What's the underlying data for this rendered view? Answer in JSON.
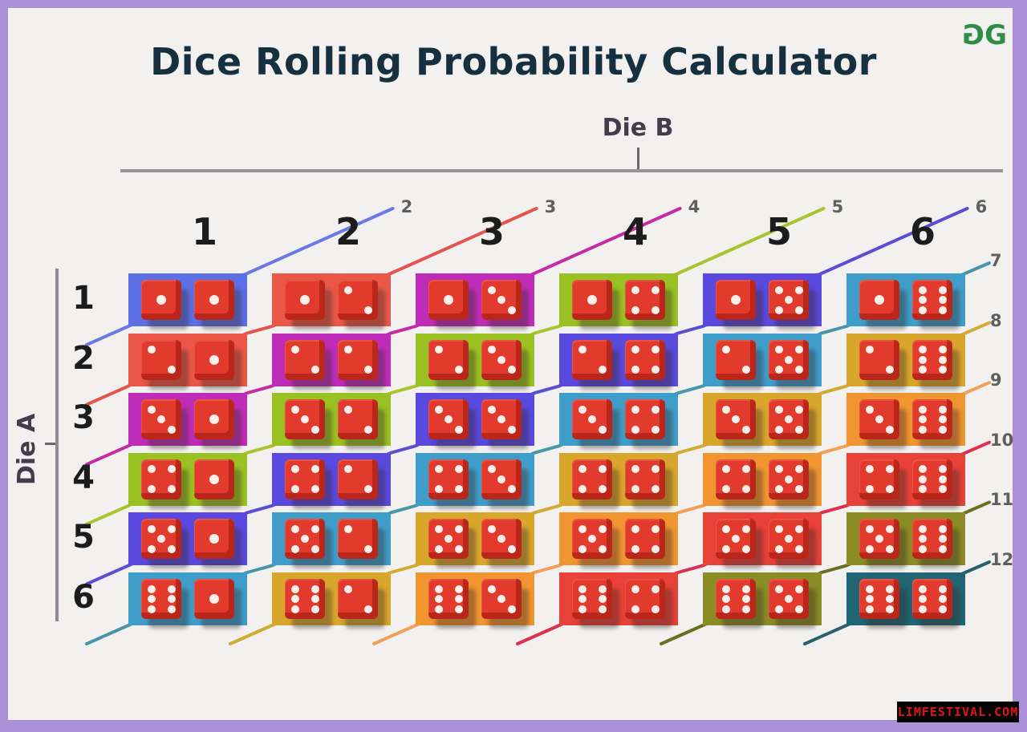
{
  "title": "Dice Rolling Probability Calculator",
  "logo": {
    "name": "geeksforgeeks-logo",
    "glyph": "G",
    "color": "#2f8d46"
  },
  "axes": {
    "col": "Die B",
    "row": "Die A",
    "col_headers": [
      "1",
      "2",
      "3",
      "4",
      "5",
      "6"
    ],
    "row_headers": [
      "1",
      "2",
      "3",
      "4",
      "5",
      "6"
    ]
  },
  "sums": [
    {
      "value": 2,
      "label": "2",
      "color": "#5c6fe4",
      "line_color": "#6b79e4",
      "label_side": "top"
    },
    {
      "value": 3,
      "label": "3",
      "color": "#ea5747",
      "line_color": "#e4544c",
      "label_side": "top"
    },
    {
      "value": 4,
      "label": "4",
      "color": "#bf2db8",
      "line_color": "#c42ba4",
      "label_side": "top"
    },
    {
      "value": 5,
      "label": "5",
      "color": "#9ac122",
      "line_color": "#aac42e",
      "label_side": "top"
    },
    {
      "value": 6,
      "label": "6",
      "color": "#5a49de",
      "line_color": "#5a4fd0",
      "label_side": "top"
    },
    {
      "value": 7,
      "label": "7",
      "color": "#3f9dca",
      "line_color": "#4a96a8",
      "label_side": "right"
    },
    {
      "value": 8,
      "label": "8",
      "color": "#d9a62c",
      "line_color": "#d2ac32",
      "label_side": "right"
    },
    {
      "value": 9,
      "label": "9",
      "color": "#f09530",
      "line_color": "#f0a058",
      "label_side": "right"
    },
    {
      "value": 10,
      "label": "10",
      "color": "#e74138",
      "line_color": "#dd3050",
      "label_side": "right"
    },
    {
      "value": 11,
      "label": "11",
      "color": "#8a8c24",
      "line_color": "#66701f",
      "label_side": "right"
    },
    {
      "value": 12,
      "label": "12",
      "color": "#206573",
      "line_color": "#28606c",
      "label_side": "right"
    }
  ],
  "grid": {
    "cells": [
      {
        "a": 1,
        "b": 1,
        "sum": 2
      },
      {
        "a": 1,
        "b": 2,
        "sum": 3
      },
      {
        "a": 1,
        "b": 3,
        "sum": 4
      },
      {
        "a": 1,
        "b": 4,
        "sum": 5
      },
      {
        "a": 1,
        "b": 5,
        "sum": 6
      },
      {
        "a": 1,
        "b": 6,
        "sum": 7
      },
      {
        "a": 2,
        "b": 1,
        "sum": 3
      },
      {
        "a": 2,
        "b": 2,
        "sum": 4
      },
      {
        "a": 2,
        "b": 3,
        "sum": 5
      },
      {
        "a": 2,
        "b": 4,
        "sum": 6
      },
      {
        "a": 2,
        "b": 5,
        "sum": 7
      },
      {
        "a": 2,
        "b": 6,
        "sum": 8
      },
      {
        "a": 3,
        "b": 1,
        "sum": 4
      },
      {
        "a": 3,
        "b": 2,
        "sum": 5
      },
      {
        "a": 3,
        "b": 3,
        "sum": 6
      },
      {
        "a": 3,
        "b": 4,
        "sum": 7
      },
      {
        "a": 3,
        "b": 5,
        "sum": 8
      },
      {
        "a": 3,
        "b": 6,
        "sum": 9
      },
      {
        "a": 4,
        "b": 1,
        "sum": 5
      },
      {
        "a": 4,
        "b": 2,
        "sum": 6
      },
      {
        "a": 4,
        "b": 3,
        "sum": 7
      },
      {
        "a": 4,
        "b": 4,
        "sum": 8
      },
      {
        "a": 4,
        "b": 5,
        "sum": 9
      },
      {
        "a": 4,
        "b": 6,
        "sum": 10
      },
      {
        "a": 5,
        "b": 1,
        "sum": 6
      },
      {
        "a": 5,
        "b": 2,
        "sum": 7
      },
      {
        "a": 5,
        "b": 3,
        "sum": 8
      },
      {
        "a": 5,
        "b": 4,
        "sum": 9
      },
      {
        "a": 5,
        "b": 5,
        "sum": 10
      },
      {
        "a": 5,
        "b": 6,
        "sum": 11
      },
      {
        "a": 6,
        "b": 1,
        "sum": 7
      },
      {
        "a": 6,
        "b": 2,
        "sum": 8
      },
      {
        "a": 6,
        "b": 3,
        "sum": 9
      },
      {
        "a": 6,
        "b": 4,
        "sum": 10
      },
      {
        "a": 6,
        "b": 5,
        "sum": 11
      },
      {
        "a": 6,
        "b": 6,
        "sum": 12
      }
    ]
  },
  "watermark": {
    "text": "LIMFESTIVAL.COM",
    "bg": "#050505",
    "color": "#e01515"
  },
  "colors": {
    "frame_border": "#ab90d8",
    "panel_bg": "#f2f1ef",
    "title_text": "#16303f",
    "axis_text": "#423d4a",
    "axis_line": "#98959c",
    "header_text": "#1c1c1c",
    "sum_label_text": "#5f5f5f",
    "die_red": "#e23a2c",
    "pip": "#ffefeb"
  }
}
